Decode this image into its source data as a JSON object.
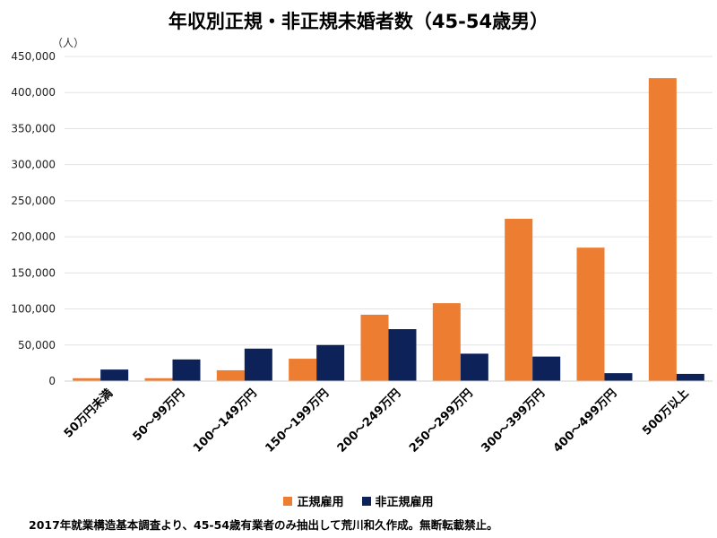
{
  "chart_data": {
    "type": "bar",
    "title": "年収別正規・非正規未婚者数（45-54歳男）",
    "y_unit": "（人）",
    "xlabel": "",
    "ylabel": "",
    "ylim": [
      0,
      450000
    ],
    "yticks": [
      0,
      50000,
      100000,
      150000,
      200000,
      250000,
      300000,
      350000,
      400000,
      450000
    ],
    "ytick_labels": [
      "0",
      "50,000",
      "100,000",
      "150,000",
      "200,000",
      "250,000",
      "300,000",
      "350,000",
      "400,000",
      "450,000"
    ],
    "grid": true,
    "legend_position": "bottom",
    "categories": [
      "50万円未満",
      "50～99万円",
      "100～149万円",
      "150～199万円",
      "200～249万円",
      "250～299万円",
      "300～399万円",
      "400～499万円",
      "500万以上"
    ],
    "series": [
      {
        "name": "正規雇用",
        "color": "#ED7D31",
        "values": [
          4000,
          4000,
          15000,
          31000,
          92000,
          108000,
          225000,
          185000,
          420000
        ]
      },
      {
        "name": "非正規雇用",
        "color": "#0D2259",
        "values": [
          16000,
          30000,
          45000,
          50000,
          72000,
          38000,
          34000,
          11000,
          10000
        ]
      }
    ],
    "source_note": "2017年就業構造基本調査より、45-54歳有業者のみ抽出して荒川和久作成。無断転載禁止。"
  }
}
